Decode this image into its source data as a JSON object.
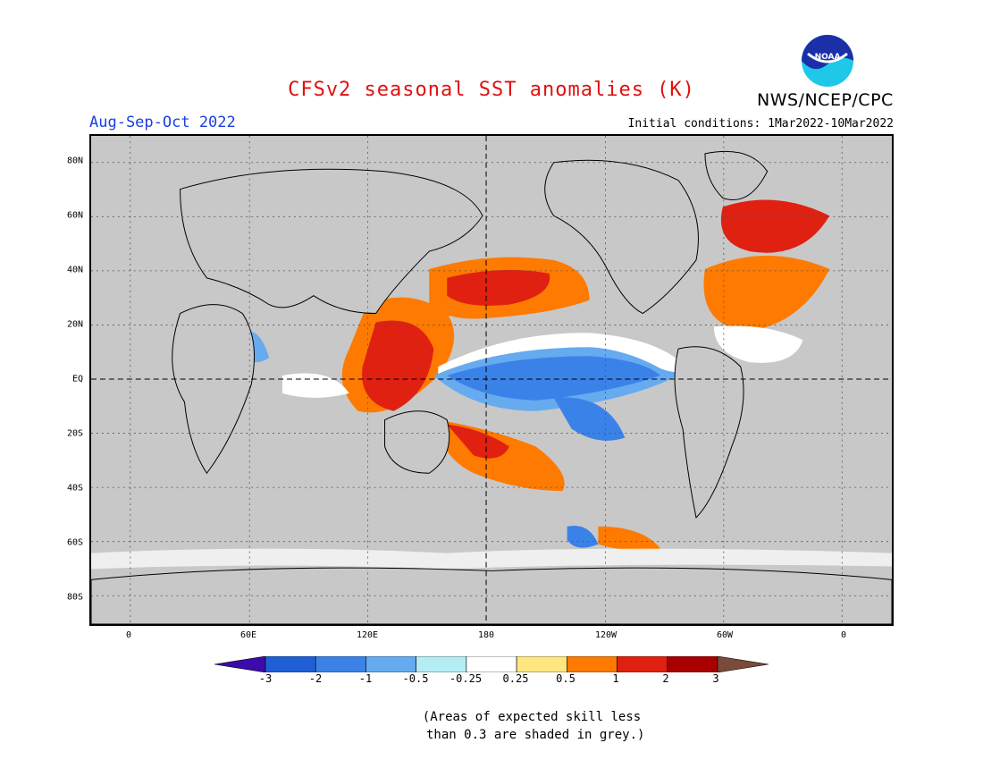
{
  "header": {
    "title": "CFSv2 seasonal SST anomalies (K)",
    "agency": "NWS/NCEP/CPC",
    "logo_text": "NOAA",
    "season": "Aug-Sep-Oct 2022",
    "initial_conditions": "Initial conditions: 1Mar2022-10Mar2022"
  },
  "colors": {
    "title": "#e01010",
    "season": "#1a3fe0",
    "land": "#ffffff",
    "ocean_grey": "#c8c8c8"
  },
  "map": {
    "lat_labels": [
      "80N",
      "60N",
      "40N",
      "20N",
      "EQ",
      "20S",
      "40S",
      "60S",
      "80S"
    ],
    "lon_labels": [
      "0",
      "60E",
      "120E",
      "180",
      "120W",
      "60W",
      "0"
    ]
  },
  "legend": {
    "ticks": [
      "-3",
      "-2",
      "-1",
      "-0.5",
      "-0.25",
      "0.25",
      "0.5",
      "1",
      "2",
      "3"
    ],
    "colors": [
      "#3b0bab",
      "#1f5fd6",
      "#3b82e8",
      "#66aaf0",
      "#b4eef4",
      "#ffffff",
      "#ffe680",
      "#ff7a00",
      "#e02010",
      "#a80000",
      "#7a4a3a"
    ]
  },
  "note": {
    "line1": "(Areas of expected skill less",
    "line2": " than 0.3 are shaded in grey.)"
  }
}
